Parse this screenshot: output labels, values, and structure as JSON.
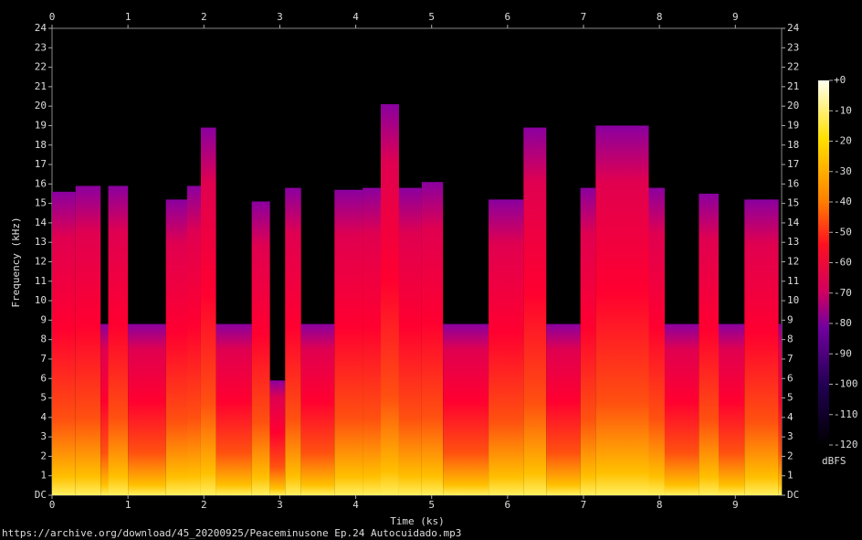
{
  "chart_data": {
    "type": "spectrogram",
    "xlabel": "Time (ks)",
    "ylabel": "Frequency (kHz)",
    "colorbar_label": "dBFS",
    "source": "https://archive.org/download/45_20200925/Peaceminusone Ep.24 Autocuidado.mp3",
    "xlim": [
      0,
      9.61
    ],
    "xticks": [
      0,
      1,
      2,
      3,
      4,
      5,
      6,
      7,
      8,
      9
    ],
    "ylim": [
      0,
      24
    ],
    "yticks": [
      {
        "value": 0,
        "label": "DC"
      },
      1,
      2,
      3,
      4,
      5,
      6,
      7,
      8,
      9,
      10,
      11,
      12,
      13,
      14,
      15,
      16,
      17,
      18,
      19,
      20,
      21,
      22,
      23,
      24
    ],
    "clim": [
      -120,
      0
    ],
    "cticks": [
      {
        "value": 0,
        "label": "+0"
      },
      -10,
      -20,
      -30,
      -40,
      -50,
      -60,
      -70,
      -80,
      -90,
      -100,
      -110,
      -120
    ],
    "segments": [
      {
        "start": 0,
        "end": 0.31,
        "cutoff": 15.6
      },
      {
        "start": 0.31,
        "end": 0.64,
        "cutoff": 15.9
      },
      {
        "start": 0.64,
        "end": 0.74,
        "cutoff": 8.8
      },
      {
        "start": 0.74,
        "end": 1.0,
        "cutoff": 15.9
      },
      {
        "start": 1.0,
        "end": 1.5,
        "cutoff": 8.8
      },
      {
        "start": 1.5,
        "end": 1.78,
        "cutoff": 15.2
      },
      {
        "start": 1.78,
        "end": 1.96,
        "cutoff": 15.9
      },
      {
        "start": 1.96,
        "end": 2.16,
        "cutoff": 18.9
      },
      {
        "start": 2.16,
        "end": 2.63,
        "cutoff": 8.8
      },
      {
        "start": 2.63,
        "end": 2.87,
        "cutoff": 15.1
      },
      {
        "start": 2.87,
        "end": 3.07,
        "cutoff": 5.9
      },
      {
        "start": 3.07,
        "end": 3.28,
        "cutoff": 15.8
      },
      {
        "start": 3.28,
        "end": 3.72,
        "cutoff": 8.8
      },
      {
        "start": 3.72,
        "end": 4.09,
        "cutoff": 15.7
      },
      {
        "start": 4.09,
        "end": 4.33,
        "cutoff": 15.8
      },
      {
        "start": 4.33,
        "end": 4.57,
        "cutoff": 20.1
      },
      {
        "start": 4.57,
        "end": 4.87,
        "cutoff": 15.8
      },
      {
        "start": 4.87,
        "end": 5.15,
        "cutoff": 16.1
      },
      {
        "start": 5.15,
        "end": 5.75,
        "cutoff": 8.8
      },
      {
        "start": 5.75,
        "end": 6.21,
        "cutoff": 15.2
      },
      {
        "start": 6.21,
        "end": 6.51,
        "cutoff": 18.9
      },
      {
        "start": 6.51,
        "end": 6.96,
        "cutoff": 8.8
      },
      {
        "start": 6.96,
        "end": 7.16,
        "cutoff": 15.8
      },
      {
        "start": 7.16,
        "end": 7.86,
        "cutoff": 19.0
      },
      {
        "start": 7.86,
        "end": 8.07,
        "cutoff": 15.8
      },
      {
        "start": 8.07,
        "end": 8.52,
        "cutoff": 8.8
      },
      {
        "start": 8.52,
        "end": 8.78,
        "cutoff": 15.5
      },
      {
        "start": 8.78,
        "end": 9.12,
        "cutoff": 8.8
      },
      {
        "start": 9.12,
        "end": 9.57,
        "cutoff": 15.2
      },
      {
        "start": 9.57,
        "end": 9.61,
        "cutoff": 8.8
      }
    ]
  }
}
